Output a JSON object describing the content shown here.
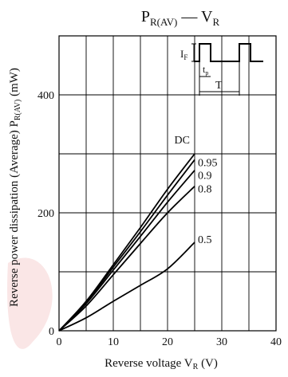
{
  "chart_data": {
    "type": "line",
    "title": "P",
    "title_sub": "R(AV)",
    "title_dash": " — V",
    "title_sub2": "R",
    "xlabel": "Reverse voltage",
    "xlabel_symbol": "V",
    "xlabel_symbol_sub": "R",
    "xlabel_unit": "(V)",
    "ylabel": "Reverse power dissipation (Average)",
    "ylabel_symbol": "P",
    "ylabel_symbol_sub": "R(AV)",
    "ylabel_unit": "(mW)",
    "xlim": [
      0,
      40
    ],
    "ylim": [
      0,
      500
    ],
    "x_ticks": [
      0,
      10,
      20,
      30,
      40
    ],
    "y_ticks": [
      0,
      200,
      400
    ],
    "grid": true,
    "series": [
      {
        "name": "DC",
        "x": [
          0,
          5,
          10,
          15,
          20,
          25
        ],
        "y": [
          0,
          50,
          112,
          175,
          240,
          300
        ]
      },
      {
        "name": "0.95",
        "x": [
          0,
          5,
          10,
          15,
          20,
          25
        ],
        "y": [
          0,
          48,
          108,
          168,
          230,
          290
        ]
      },
      {
        "name": "0.9",
        "x": [
          0,
          5,
          10,
          15,
          20,
          25
        ],
        "y": [
          0,
          46,
          103,
          160,
          218,
          272
        ]
      },
      {
        "name": "0.8",
        "x": [
          0,
          5,
          10,
          15,
          20,
          25
        ],
        "y": [
          0,
          42,
          95,
          148,
          200,
          245
        ]
      },
      {
        "name": "0.5",
        "x": [
          0,
          5,
          10,
          15,
          20,
          25
        ],
        "y": [
          0,
          22,
          50,
          77,
          105,
          150
        ]
      }
    ],
    "inset_labels": {
      "amplitude": "I",
      "amplitude_sub": "F",
      "pulse": "t",
      "pulse_sub": "p",
      "period": "T"
    }
  },
  "colors": {
    "line": "#000000",
    "grid": "#000000",
    "watermark": "#f2b8b8"
  }
}
